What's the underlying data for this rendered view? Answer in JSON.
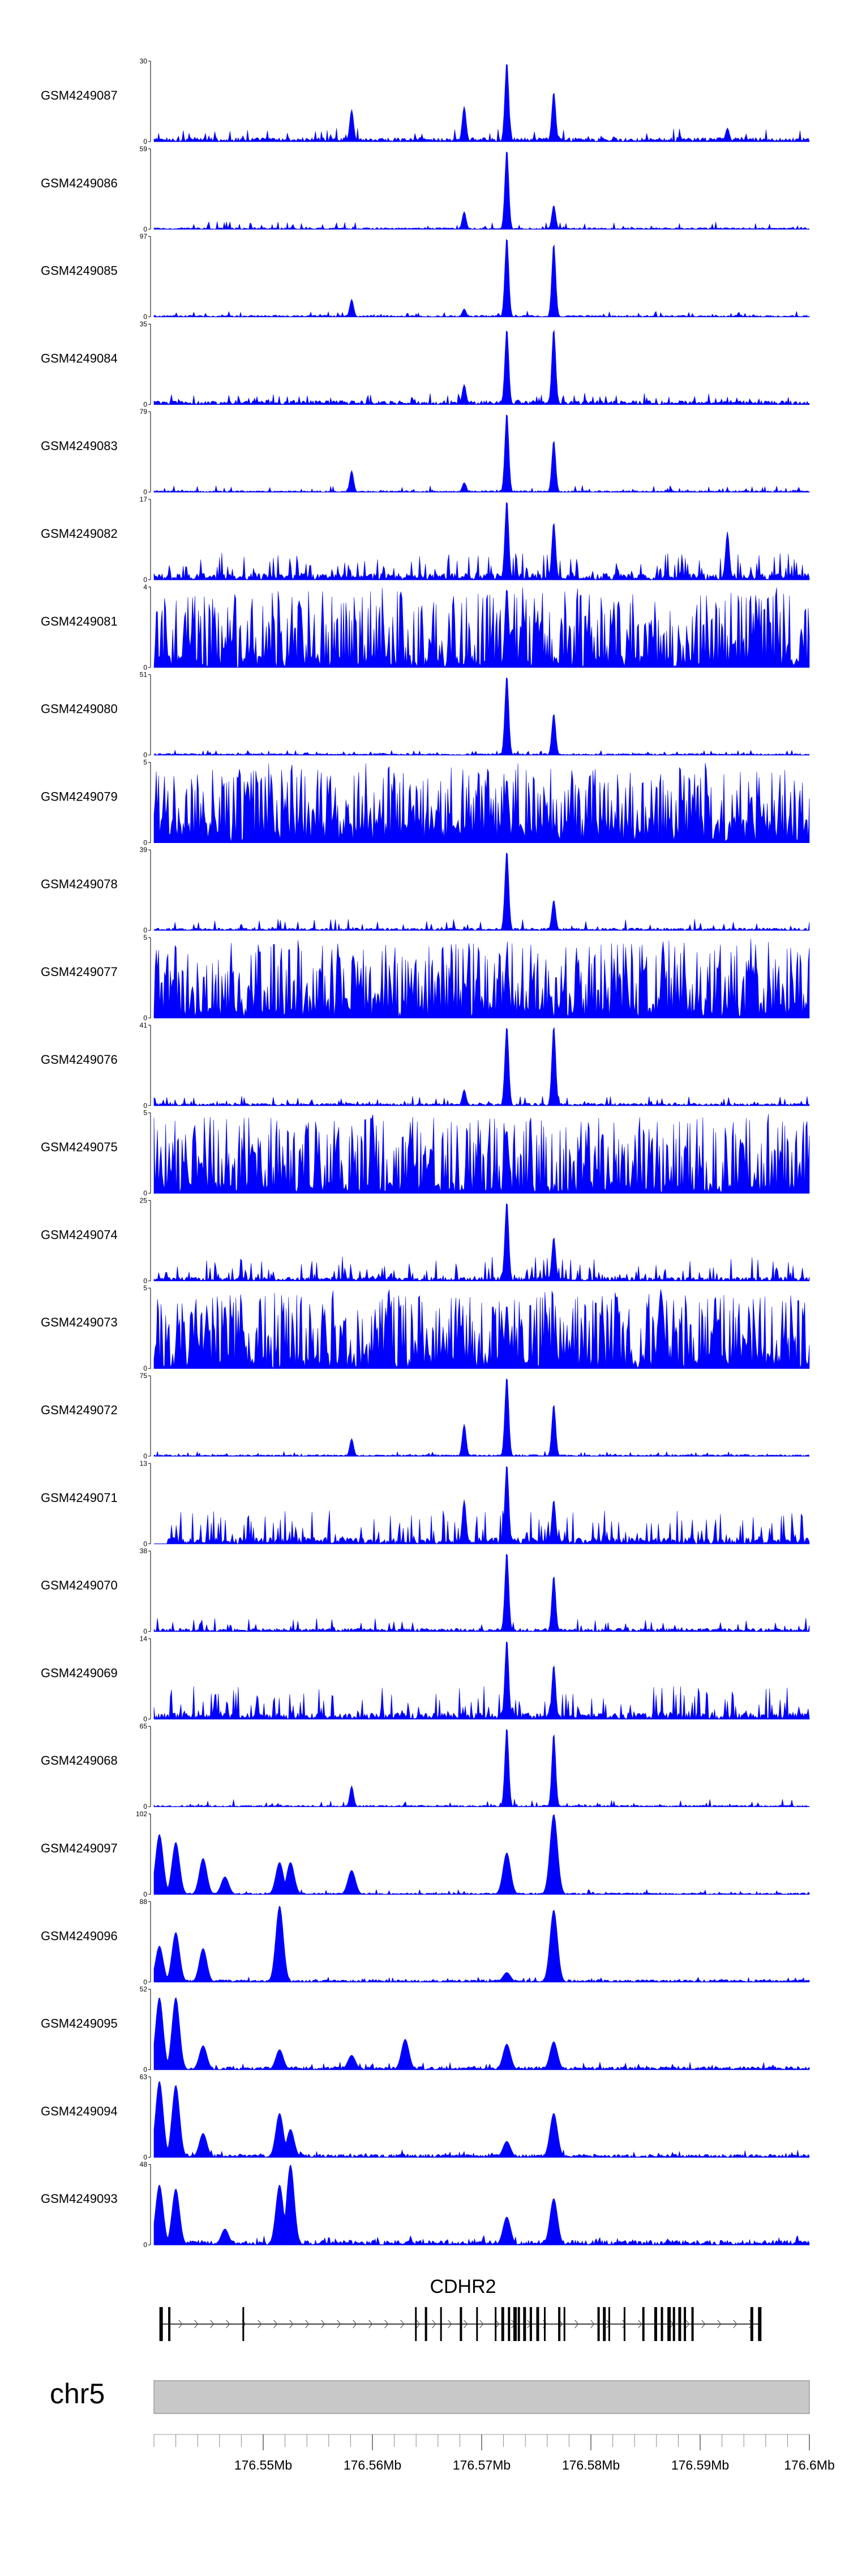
{
  "chart_data": {
    "type": "area",
    "title": "",
    "xlabel": "",
    "ylabel": "",
    "region": {
      "chrom": "chr5",
      "start_mb": 176.54,
      "end_mb": 176.6
    },
    "x_ticks": [
      "176.55Mb",
      "176.56Mb",
      "176.57Mb",
      "176.58Mb",
      "176.59Mb",
      "176.6Mb"
    ],
    "x_tick_values": [
      176.55,
      176.56,
      176.57,
      176.58,
      176.59,
      176.6
    ],
    "gene": {
      "name": "CDHR2",
      "start_mb": 176.5405,
      "end_mb": 176.5956,
      "strand": "+"
    },
    "color": "#0000ff",
    "tracks": [
      {
        "name": "GSM4249087",
        "ymax": 30,
        "profile": "a",
        "baseline": 0.05,
        "noise": 0.14,
        "peaks": [
          [
            176.5581,
            0.4
          ],
          [
            176.5684,
            0.44
          ],
          [
            176.5723,
            1.0
          ],
          [
            176.5766,
            0.62
          ],
          [
            176.5925,
            0.17
          ]
        ]
      },
      {
        "name": "GSM4249086",
        "ymax": 59,
        "profile": "a",
        "baseline": 0.02,
        "noise": 0.08,
        "peaks": [
          [
            176.5684,
            0.22
          ],
          [
            176.5723,
            1.0
          ],
          [
            176.5766,
            0.3
          ]
        ]
      },
      {
        "name": "GSM4249085",
        "ymax": 97,
        "profile": "a",
        "baseline": 0.02,
        "noise": 0.06,
        "peaks": [
          [
            176.5581,
            0.22
          ],
          [
            176.5684,
            0.1
          ],
          [
            176.5723,
            1.0
          ],
          [
            176.5766,
            0.92
          ]
        ]
      },
      {
        "name": "GSM4249084",
        "ymax": 35,
        "profile": "a",
        "baseline": 0.05,
        "noise": 0.12,
        "peaks": [
          [
            176.5684,
            0.25
          ],
          [
            176.5723,
            0.95
          ],
          [
            176.5766,
            0.95
          ]
        ]
      },
      {
        "name": "GSM4249083",
        "ymax": 79,
        "profile": "a",
        "baseline": 0.02,
        "noise": 0.07,
        "peaks": [
          [
            176.5581,
            0.27
          ],
          [
            176.5684,
            0.12
          ],
          [
            176.5723,
            1.0
          ],
          [
            176.5766,
            0.65
          ]
        ]
      },
      {
        "name": "GSM4249082",
        "ymax": 17,
        "profile": "b",
        "baseline": 0.08,
        "noise": 0.28,
        "peaks": [
          [
            176.5723,
            1.0
          ],
          [
            176.5766,
            0.72
          ],
          [
            176.5925,
            0.6
          ]
        ]
      },
      {
        "name": "GSM4249081",
        "ymax": 4,
        "profile": "c",
        "baseline": 0.15,
        "noise": 0.95,
        "peaks": [
          [
            176.5723,
            1.0
          ]
        ]
      },
      {
        "name": "GSM4249080",
        "ymax": 51,
        "profile": "a",
        "baseline": 0.02,
        "noise": 0.05,
        "peaks": [
          [
            176.5723,
            1.0
          ],
          [
            176.5766,
            0.52
          ]
        ]
      },
      {
        "name": "GSM4249079",
        "ymax": 5,
        "profile": "c",
        "baseline": 0.3,
        "noise": 0.92,
        "peaks": [
          [
            176.5723,
            0.8
          ]
        ]
      },
      {
        "name": "GSM4249078",
        "ymax": 39,
        "profile": "a",
        "baseline": 0.03,
        "noise": 0.12,
        "peaks": [
          [
            176.5723,
            1.0
          ],
          [
            176.5766,
            0.38
          ]
        ]
      },
      {
        "name": "GSM4249077",
        "ymax": 5,
        "profile": "c",
        "baseline": 0.2,
        "noise": 0.95,
        "peaks": [
          [
            176.5723,
            0.8
          ],
          [
            176.5866,
            0.95
          ]
        ]
      },
      {
        "name": "GSM4249076",
        "ymax": 41,
        "profile": "a",
        "baseline": 0.03,
        "noise": 0.1,
        "peaks": [
          [
            176.5684,
            0.2
          ],
          [
            176.5723,
            1.0
          ],
          [
            176.5766,
            1.0
          ]
        ]
      },
      {
        "name": "GSM4249075",
        "ymax": 5,
        "profile": "c",
        "baseline": 0.15,
        "noise": 0.95,
        "peaks": [
          [
            176.56,
            1.0
          ],
          [
            176.5723,
            0.8
          ]
        ]
      },
      {
        "name": "GSM4249074",
        "ymax": 25,
        "profile": "b",
        "baseline": 0.05,
        "noise": 0.25,
        "peaks": [
          [
            176.5723,
            1.0
          ],
          [
            176.5766,
            0.55
          ]
        ]
      },
      {
        "name": "GSM4249073",
        "ymax": 5,
        "profile": "c",
        "baseline": 0.2,
        "noise": 0.92,
        "peaks": [
          [
            176.5615,
            1.0
          ],
          [
            176.5723,
            0.8
          ]
        ]
      },
      {
        "name": "GSM4249072",
        "ymax": 75,
        "profile": "a",
        "baseline": 0.02,
        "noise": 0.05,
        "peaks": [
          [
            176.5581,
            0.22
          ],
          [
            176.5684,
            0.4
          ],
          [
            176.5723,
            1.0
          ],
          [
            176.5766,
            0.65
          ]
        ]
      },
      {
        "name": "GSM4249071",
        "ymax": 13,
        "profile": "b",
        "baseline": 0.08,
        "noise": 0.35,
        "start_frac": 0.02,
        "peaks": [
          [
            176.5684,
            0.55
          ],
          [
            176.5723,
            1.0
          ],
          [
            176.5766,
            0.55
          ]
        ]
      },
      {
        "name": "GSM4249070",
        "ymax": 38,
        "profile": "a",
        "baseline": 0.04,
        "noise": 0.14,
        "peaks": [
          [
            176.5723,
            1.0
          ],
          [
            176.5766,
            0.7
          ]
        ]
      },
      {
        "name": "GSM4249069",
        "ymax": 14,
        "profile": "b",
        "baseline": 0.08,
        "noise": 0.35,
        "peaks": [
          [
            176.5723,
            1.0
          ],
          [
            176.5766,
            0.68
          ]
        ]
      },
      {
        "name": "GSM4249068",
        "ymax": 65,
        "profile": "a",
        "baseline": 0.02,
        "noise": 0.08,
        "peaks": [
          [
            176.5581,
            0.26
          ],
          [
            176.5723,
            1.0
          ],
          [
            176.5766,
            0.92
          ]
        ]
      },
      {
        "name": "GSM4249097",
        "ymax": 102,
        "profile": "d",
        "baseline": 0.02,
        "noise": 0.05,
        "peaks": [
          [
            176.5405,
            0.75
          ],
          [
            176.542,
            0.65
          ],
          [
            176.5445,
            0.45
          ],
          [
            176.5465,
            0.22
          ],
          [
            176.5515,
            0.4
          ],
          [
            176.5525,
            0.4
          ],
          [
            176.5581,
            0.3
          ],
          [
            176.5723,
            0.52
          ],
          [
            176.5766,
            1.0
          ]
        ]
      },
      {
        "name": "GSM4249096",
        "ymax": 88,
        "profile": "d",
        "baseline": 0.03,
        "noise": 0.05,
        "peaks": [
          [
            176.5405,
            0.45
          ],
          [
            176.542,
            0.62
          ],
          [
            176.5445,
            0.42
          ],
          [
            176.5515,
            0.95
          ],
          [
            176.5723,
            0.12
          ],
          [
            176.5766,
            0.9
          ]
        ]
      },
      {
        "name": "GSM4249095",
        "ymax": 52,
        "profile": "d",
        "baseline": 0.04,
        "noise": 0.08,
        "peaks": [
          [
            176.5405,
            0.9
          ],
          [
            176.542,
            0.9
          ],
          [
            176.5445,
            0.3
          ],
          [
            176.5515,
            0.25
          ],
          [
            176.5581,
            0.18
          ],
          [
            176.563,
            0.38
          ],
          [
            176.5723,
            0.32
          ],
          [
            176.5766,
            0.35
          ]
        ]
      },
      {
        "name": "GSM4249094",
        "ymax": 63,
        "profile": "d",
        "baseline": 0.04,
        "noise": 0.08,
        "peaks": [
          [
            176.5405,
            0.95
          ],
          [
            176.542,
            0.9
          ],
          [
            176.5445,
            0.3
          ],
          [
            176.5515,
            0.55
          ],
          [
            176.5525,
            0.35
          ],
          [
            176.5723,
            0.2
          ],
          [
            176.5766,
            0.55
          ]
        ]
      },
      {
        "name": "GSM4249093",
        "ymax": 48,
        "profile": "d",
        "baseline": 0.06,
        "noise": 0.1,
        "peaks": [
          [
            176.5405,
            0.75
          ],
          [
            176.542,
            0.7
          ],
          [
            176.5465,
            0.2
          ],
          [
            176.5515,
            0.75
          ],
          [
            176.5525,
            1.0
          ],
          [
            176.5723,
            0.35
          ],
          [
            176.5766,
            0.58
          ]
        ]
      }
    ]
  }
}
